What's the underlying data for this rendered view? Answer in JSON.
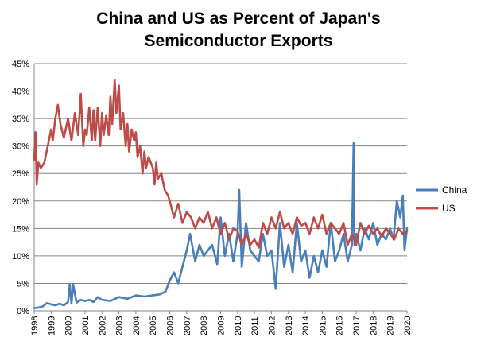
{
  "chart_data": {
    "type": "line",
    "title_lines": [
      "China and US as Percent of Japan's",
      "Semiconductor Exports"
    ],
    "xlabel": "",
    "ylabel": "",
    "x_range": [
      1998.0,
      2020.0
    ],
    "ylim": [
      0,
      45
    ],
    "y_ticks": [
      "0%",
      "5%",
      "10%",
      "15%",
      "20%",
      "25%",
      "30%",
      "35%",
      "40%",
      "45%"
    ],
    "x_ticks": [
      "1998",
      "1999",
      "2000",
      "2001",
      "2002",
      "2003",
      "2004",
      "2005",
      "2006",
      "2007",
      "2008",
      "2009",
      "2010",
      "2011",
      "2012",
      "2013",
      "2014",
      "2015",
      "2016",
      "2017",
      "2018",
      "2019",
      "2020"
    ],
    "grid": "horizontal",
    "legend_position": "right",
    "series": [
      {
        "name": "China",
        "color": "#4a7ebb",
        "x": [
          1998.0,
          1998.25,
          1998.5,
          1998.75,
          1999.0,
          1999.25,
          1999.5,
          1999.75,
          2000.0,
          2000.1,
          2000.2,
          2000.3,
          2000.5,
          2000.75,
          2001.0,
          2001.25,
          2001.5,
          2001.75,
          2002.0,
          2002.5,
          2003.0,
          2003.5,
          2004.0,
          2004.5,
          2005.0,
          2005.4,
          2005.75,
          2006.0,
          2006.25,
          2006.5,
          2006.75,
          2007.0,
          2007.2,
          2007.5,
          2007.75,
          2008.0,
          2008.5,
          2008.8,
          2009.0,
          2009.25,
          2009.5,
          2009.75,
          2010.0,
          2010.1,
          2010.25,
          2010.5,
          2010.75,
          2011.0,
          2011.25,
          2011.5,
          2011.75,
          2012.0,
          2012.25,
          2012.5,
          2012.75,
          2013.0,
          2013.25,
          2013.5,
          2013.75,
          2014.0,
          2014.25,
          2014.5,
          2014.75,
          2015.0,
          2015.25,
          2015.5,
          2015.75,
          2016.0,
          2016.25,
          2016.5,
          2016.75,
          2016.85,
          2016.9,
          2017.0,
          2017.25,
          2017.5,
          2017.75,
          2018.0,
          2018.25,
          2018.5,
          2018.75,
          2019.0,
          2019.2,
          2019.4,
          2019.6,
          2019.75,
          2019.85,
          2020.0
        ],
        "values": [
          0.5,
          0.6,
          0.8,
          1.4,
          1.2,
          1.0,
          1.3,
          1.0,
          1.6,
          4.8,
          1.3,
          4.8,
          1.5,
          2.0,
          1.8,
          2.0,
          1.6,
          2.5,
          2.0,
          1.8,
          2.5,
          2.2,
          2.8,
          2.6,
          2.8,
          3.0,
          3.5,
          5.5,
          7.0,
          5.0,
          8.0,
          11.0,
          14.0,
          9.0,
          12.0,
          10.0,
          12.0,
          8.5,
          17.0,
          10.0,
          14.0,
          9.0,
          14.0,
          22.0,
          8.0,
          16.0,
          11.0,
          10.0,
          9.0,
          14.0,
          10.0,
          11.0,
          4.0,
          16.0,
          8.0,
          12.0,
          7.0,
          16.0,
          9.0,
          11.0,
          6.0,
          10.0,
          7.0,
          11.0,
          8.0,
          16.0,
          9.0,
          11.0,
          14.0,
          9.0,
          12.0,
          30.5,
          12.0,
          14.0,
          11.0,
          15.0,
          13.0,
          16.0,
          12.0,
          14.0,
          13.0,
          15.0,
          13.0,
          20.0,
          17.0,
          21.0,
          11.0,
          15.0
        ]
      },
      {
        "name": "US",
        "color": "#be4b48",
        "x": [
          1998.0,
          1998.08,
          1998.15,
          1998.25,
          1998.4,
          1998.6,
          1998.8,
          1999.0,
          1999.1,
          1999.25,
          1999.4,
          1999.55,
          1999.75,
          2000.0,
          2000.2,
          2000.4,
          2000.6,
          2000.75,
          2000.9,
          2001.0,
          2001.1,
          2001.25,
          2001.4,
          2001.5,
          2001.6,
          2001.75,
          2001.9,
          2002.0,
          2002.1,
          2002.25,
          2002.4,
          2002.5,
          2002.6,
          2002.75,
          2002.85,
          2003.0,
          2003.1,
          2003.25,
          2003.4,
          2003.5,
          2003.6,
          2003.75,
          2003.9,
          2004.0,
          2004.1,
          2004.25,
          2004.4,
          2004.5,
          2004.6,
          2004.75,
          2005.0,
          2005.1,
          2005.2,
          2005.3,
          2005.5,
          2005.7,
          2005.9,
          2006.0,
          2006.25,
          2006.5,
          2006.75,
          2007.0,
          2007.25,
          2007.5,
          2007.75,
          2008.0,
          2008.25,
          2008.5,
          2008.75,
          2009.0,
          2009.25,
          2009.5,
          2009.75,
          2010.0,
          2010.25,
          2010.5,
          2010.75,
          2011.0,
          2011.25,
          2011.5,
          2011.75,
          2012.0,
          2012.25,
          2012.5,
          2012.75,
          2013.0,
          2013.25,
          2013.5,
          2013.75,
          2014.0,
          2014.25,
          2014.5,
          2014.75,
          2015.0,
          2015.25,
          2015.5,
          2015.75,
          2016.0,
          2016.25,
          2016.5,
          2016.75,
          2017.0,
          2017.25,
          2017.5,
          2017.75,
          2018.0,
          2018.25,
          2018.5,
          2018.75,
          2019.0,
          2019.25,
          2019.5,
          2019.75,
          2020.0
        ],
        "values": [
          27.5,
          32.5,
          23.0,
          27.0,
          26.0,
          27.0,
          30.0,
          33.0,
          31.0,
          35.0,
          37.5,
          34.0,
          31.5,
          35.0,
          31.0,
          36.0,
          32.0,
          39.5,
          30.0,
          33.0,
          32.0,
          37.0,
          31.0,
          36.5,
          31.0,
          37.0,
          30.0,
          36.0,
          32.0,
          35.5,
          32.0,
          39.0,
          34.0,
          42.0,
          36.0,
          41.0,
          33.0,
          36.0,
          30.0,
          34.0,
          29.0,
          33.0,
          31.0,
          32.5,
          28.0,
          30.0,
          25.0,
          29.0,
          26.0,
          28.0,
          26.0,
          23.0,
          27.0,
          24.0,
          25.0,
          22.0,
          21.0,
          20.0,
          17.0,
          19.5,
          16.0,
          18.0,
          17.0,
          15.0,
          17.0,
          16.0,
          18.0,
          15.0,
          17.0,
          14.0,
          16.0,
          13.0,
          15.0,
          14.5,
          12.0,
          14.0,
          12.0,
          13.0,
          11.5,
          16.0,
          14.0,
          17.0,
          15.0,
          18.0,
          15.0,
          16.0,
          14.0,
          17.0,
          15.5,
          16.0,
          14.0,
          17.0,
          15.0,
          17.5,
          14.0,
          16.0,
          15.0,
          14.0,
          16.0,
          12.0,
          14.0,
          12.0,
          16.0,
          14.0,
          15.5,
          14.0,
          15.0,
          13.5,
          15.0,
          14.0,
          13.0,
          15.0,
          14.0,
          14.5
        ]
      }
    ]
  }
}
